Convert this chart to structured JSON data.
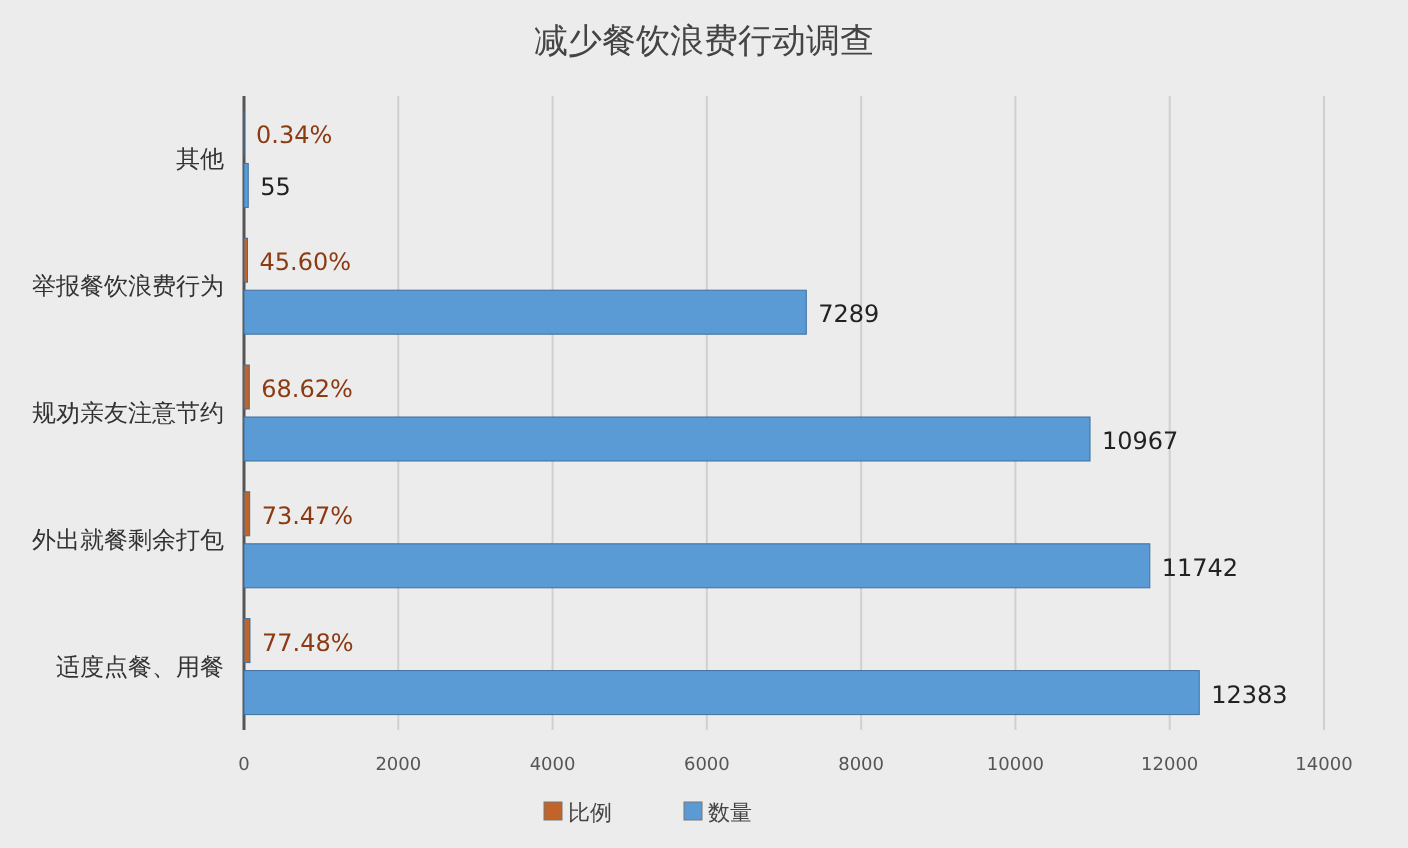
{
  "chart_data": {
    "type": "bar",
    "orientation": "horizontal",
    "title": "减少餐饮浪费行动调查",
    "categories": [
      "其他",
      "举报餐饮浪费行为",
      "规劝亲友注意节约",
      "外出就餐剩余打包",
      "适度点餐、用餐"
    ],
    "series": [
      {
        "name": "比例",
        "color": "#c0642a",
        "values": [
          0.34,
          45.6,
          68.62,
          73.47,
          77.48
        ],
        "value_labels": [
          "0.34%",
          "45.60%",
          "68.62%",
          "73.47%",
          "77.48%"
        ]
      },
      {
        "name": "数量",
        "color": "#5b9bd5",
        "values": [
          55,
          7289,
          10967,
          11742,
          12383
        ],
        "value_labels": [
          "55",
          "7289",
          "10967",
          "11742",
          "12383"
        ]
      }
    ],
    "xlim": [
      0,
      14000
    ],
    "xticks": [
      0,
      2000,
      4000,
      6000,
      8000,
      10000,
      12000,
      14000
    ],
    "grid": "x",
    "legend": "bottom"
  }
}
